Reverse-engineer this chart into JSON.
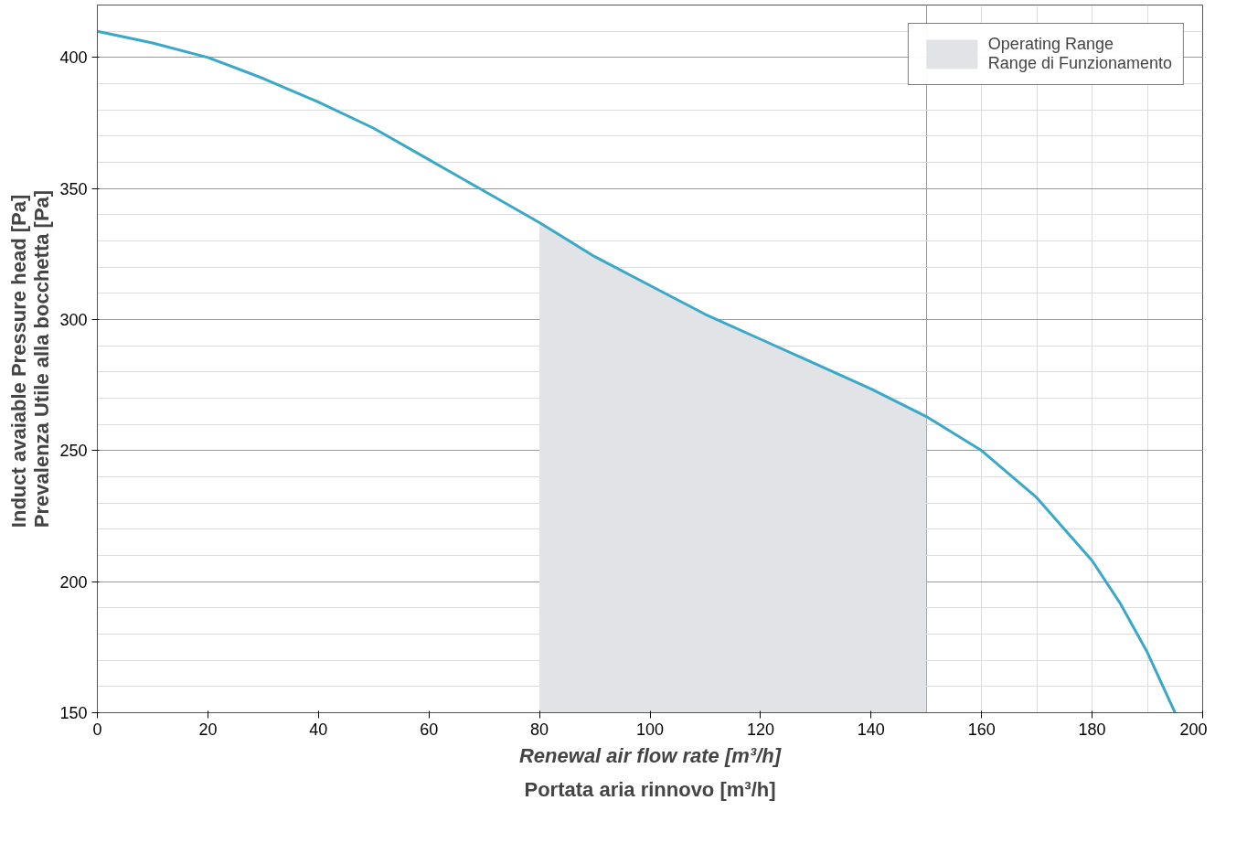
{
  "chart_data": {
    "type": "line",
    "xlabel": "Renewal air flow rate [m³/h]\nPortata aria rinnovo [m³/h]",
    "ylabel": "Induct avaiable Pressure head [Pa]\nPrevalenza Utile alla bocchetta [Pa]",
    "xlim": [
      0,
      200
    ],
    "xticks": [
      0,
      20,
      40,
      60,
      80,
      100,
      120,
      140,
      160,
      180,
      200
    ],
    "ylim": [
      150,
      420
    ],
    "yticks": [
      150,
      200,
      250,
      300,
      350,
      400
    ],
    "grid": true,
    "legend": "top right",
    "series": [
      {
        "type": "area",
        "name": "Operating Range\nRange di Funzionamento",
        "color": "#e1e3e7",
        "x": [
          80,
          90,
          100,
          110,
          120,
          130,
          140,
          150
        ],
        "values": [
          337,
          324,
          313,
          302,
          292.5,
          283,
          273.5,
          263
        ]
      },
      {
        "color": "#3aa8c8",
        "x": [
          0,
          10,
          20,
          30,
          40,
          50,
          60,
          70,
          80,
          90,
          100,
          110,
          120,
          130,
          140,
          150,
          160,
          170,
          180,
          185,
          190,
          195
        ],
        "values": [
          410,
          405.5,
          400,
          392,
          383,
          373,
          361,
          349,
          337,
          324,
          313,
          302,
          292.5,
          283,
          273.5,
          263,
          250,
          232,
          208,
          192,
          173,
          150
        ]
      }
    ]
  }
}
